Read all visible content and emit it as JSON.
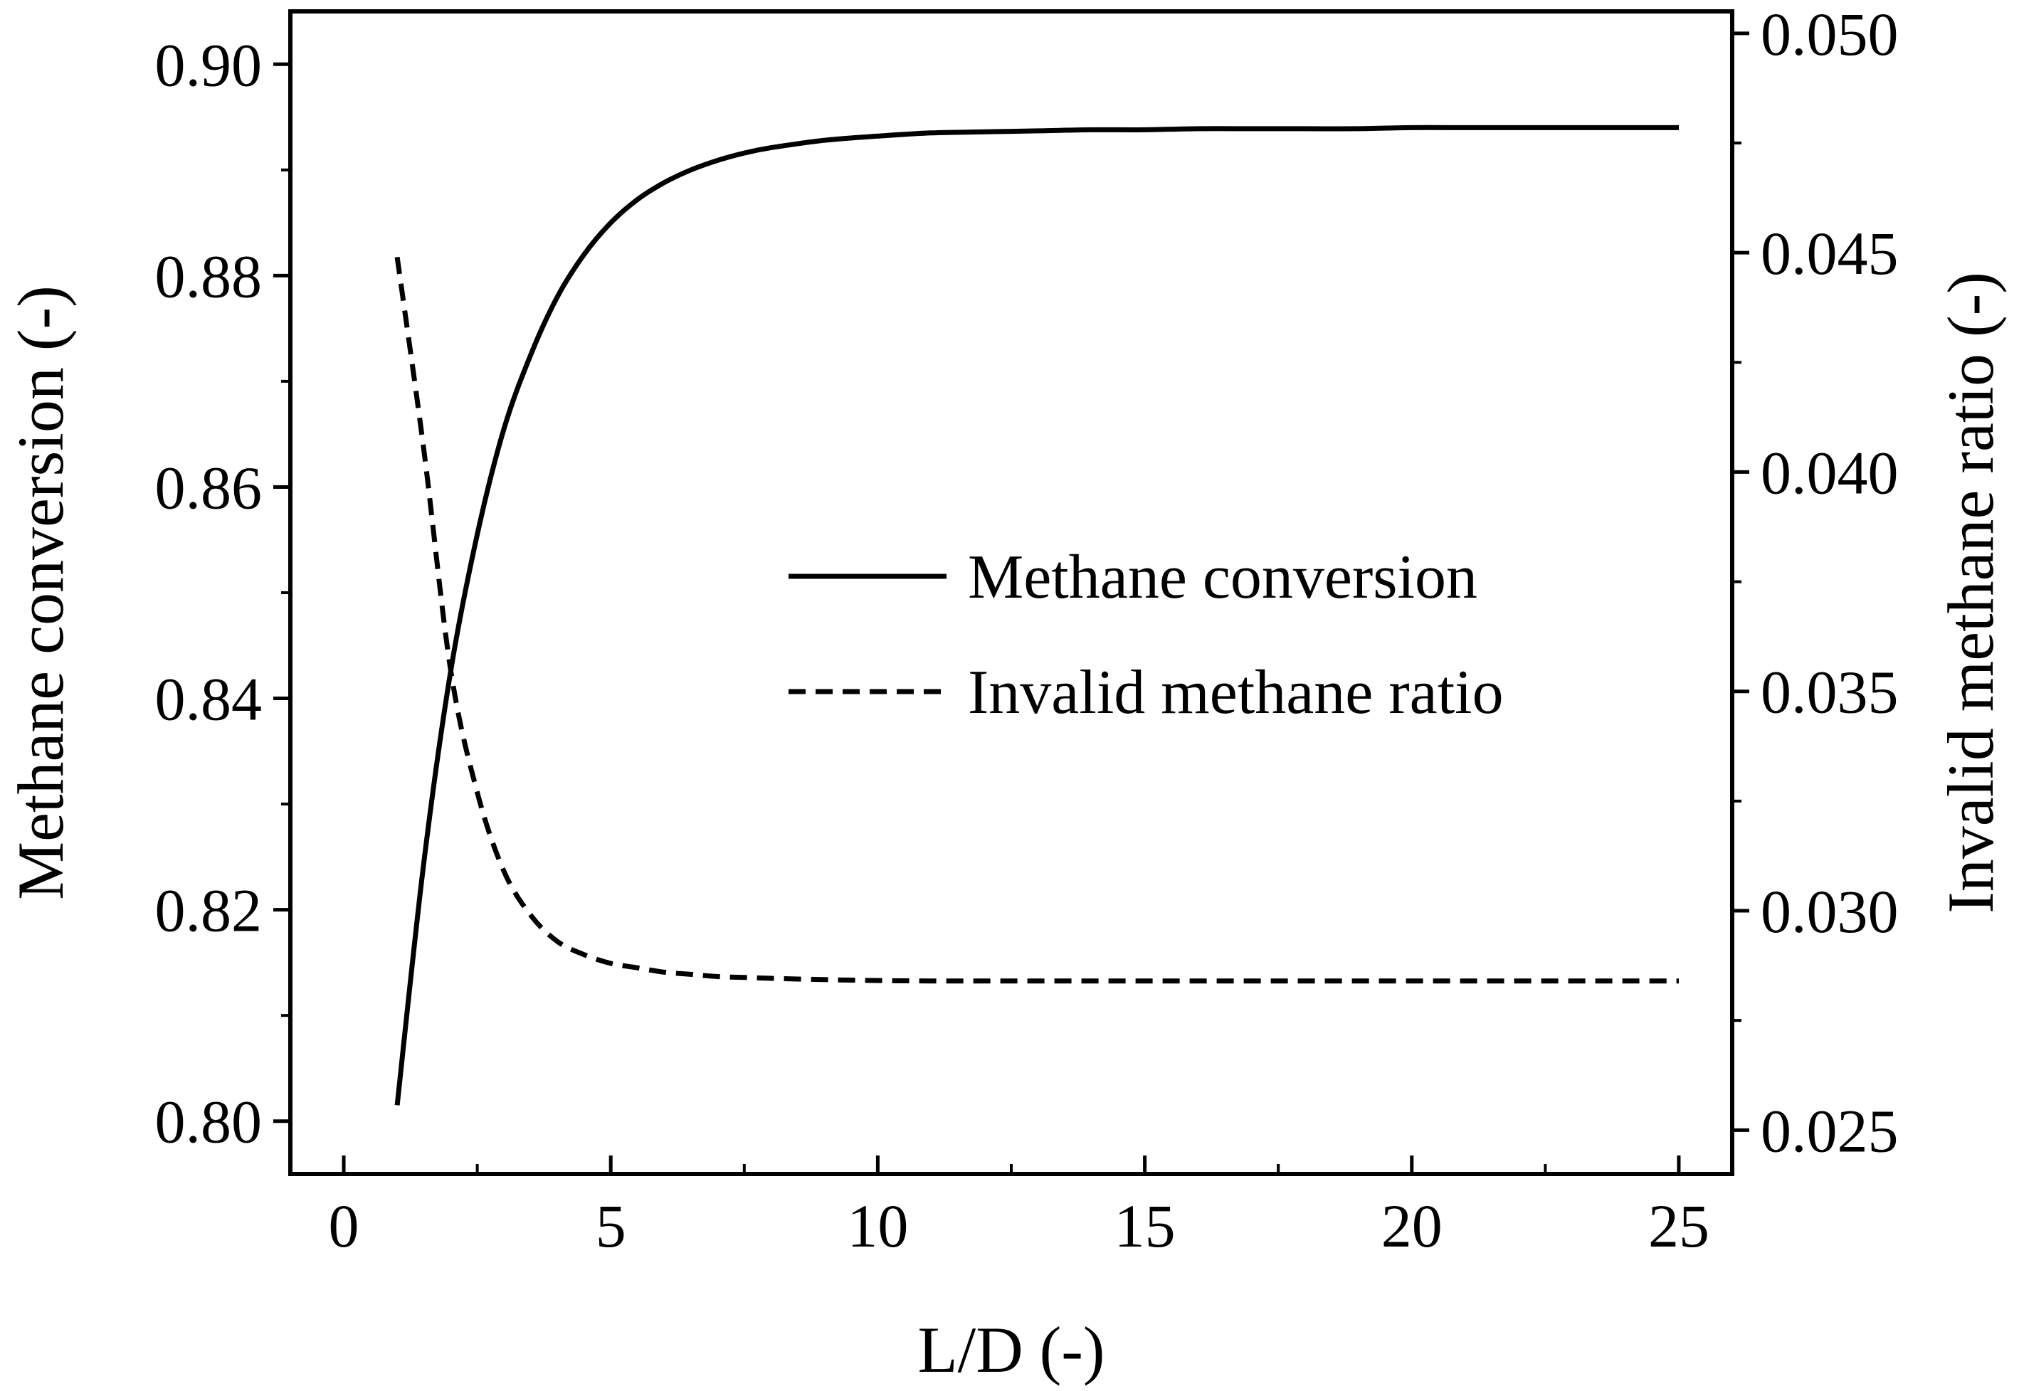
{
  "chart_data": {
    "type": "line",
    "title": "",
    "xlabel": "L/D (-)",
    "ylabel_left": "Methane conversion (-)",
    "ylabel_right": "Invalid methane ratio (-)",
    "xlim": [
      -1,
      26
    ],
    "ylim_left": [
      0.795,
      0.905
    ],
    "ylim_right": [
      0.024,
      0.0505
    ],
    "x_ticks": [
      0,
      5,
      10,
      15,
      20,
      25
    ],
    "x_tick_labels": [
      "0",
      "5",
      "10",
      "15",
      "20",
      "25"
    ],
    "y_left_ticks": [
      0.8,
      0.82,
      0.84,
      0.86,
      0.88,
      0.9
    ],
    "y_left_tick_labels": [
      "0.80",
      "0.82",
      "0.84",
      "0.86",
      "0.88",
      "0.90"
    ],
    "y_right_ticks": [
      0.025,
      0.03,
      0.035,
      0.04,
      0.045,
      0.05
    ],
    "y_right_tick_labels": [
      "0.025",
      "0.030",
      "0.035",
      "0.040",
      "0.045",
      "0.050"
    ],
    "grid": false,
    "legend_position": "center-right",
    "series": [
      {
        "name": "Methane conversion",
        "axis": "left",
        "style": "solid",
        "color": "#000000",
        "x": [
          1,
          1.5,
          2,
          2.5,
          3,
          3.5,
          4,
          4.5,
          5,
          5.5,
          6,
          6.5,
          7,
          7.5,
          8,
          9,
          10,
          11,
          12,
          13,
          14,
          15,
          16,
          17,
          18,
          19,
          20,
          21,
          22,
          23,
          24,
          25
        ],
        "values": [
          0.8015,
          0.8245,
          0.8425,
          0.8555,
          0.8655,
          0.8725,
          0.878,
          0.882,
          0.885,
          0.8872,
          0.8888,
          0.89,
          0.8909,
          0.8916,
          0.8921,
          0.8928,
          0.8932,
          0.8935,
          0.8936,
          0.8937,
          0.8938,
          0.8938,
          0.8939,
          0.8939,
          0.8939,
          0.8939,
          0.894,
          0.894,
          0.894,
          0.894,
          0.894,
          0.894
        ]
      },
      {
        "name": "Invalid methane ratio",
        "axis": "right",
        "style": "dashed",
        "color": "#000000",
        "x": [
          1,
          1.5,
          2,
          2.5,
          3,
          3.5,
          4,
          4.5,
          5,
          5.5,
          6,
          6.5,
          7,
          7.5,
          8,
          9,
          10,
          11,
          12,
          13,
          14,
          15,
          16,
          17,
          18,
          19,
          20,
          21,
          22,
          23,
          24,
          25
        ],
        "values": [
          0.0449,
          0.0405,
          0.0355,
          0.0327,
          0.0309,
          0.0299,
          0.0293,
          0.029,
          0.0288,
          0.0287,
          0.0286,
          0.02855,
          0.0285,
          0.02848,
          0.02846,
          0.02843,
          0.02841,
          0.0284,
          0.0284,
          0.0284,
          0.0284,
          0.0284,
          0.0284,
          0.0284,
          0.0284,
          0.0284,
          0.0284,
          0.0284,
          0.0284,
          0.0284,
          0.0284,
          0.0284
        ]
      }
    ]
  }
}
